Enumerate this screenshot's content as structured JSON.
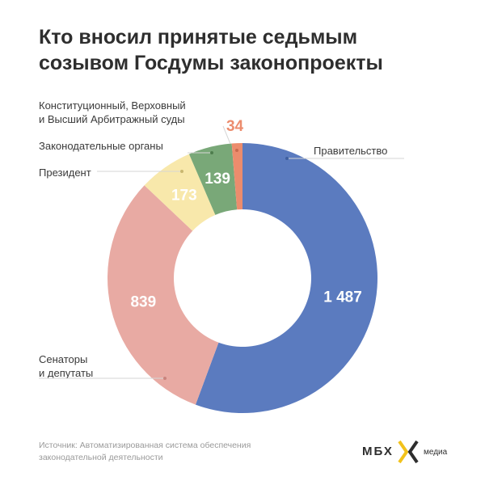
{
  "title": {
    "line1": "Кто вносил принятые седьмым",
    "line2": "созывом Госдумы законопроекты"
  },
  "chart_data": {
    "type": "pie",
    "variant": "donut",
    "title": "Кто вносил принятые седьмым созывом Госдумы законопроекты",
    "categories": [
      "Правительство",
      "Сенаторы и депутаты",
      "Президент",
      "Законодательные органы",
      "Конституционный, Верховный и Высший Арбитражный суды"
    ],
    "values": [
      1487,
      839,
      173,
      139,
      34
    ],
    "value_labels": [
      "1 487",
      "839",
      "173",
      "139",
      "34"
    ],
    "colors": [
      "#5b7bbf",
      "#e8aaa3",
      "#f8e8ab",
      "#79a878",
      "#ec8c6d"
    ],
    "value_label_colors": [
      "#ffffff",
      "#ffffff",
      "#ffffff",
      "#ffffff",
      "#ec8c6d"
    ]
  },
  "labels": {
    "government": "Правительство",
    "senators_line1": "Сенаторы",
    "senators_line2": "и депутаты",
    "president": "Президент",
    "legislative": "Законодательные органы",
    "courts_line1": "Конституционный, Верховный",
    "courts_line2": "и Высший Арбитражный суды"
  },
  "source": {
    "line1": "Источник: Автоматизированная система обеспечения",
    "line2": "законодательной деятельности"
  },
  "logo": {
    "text": "МБХ",
    "sub": "медиа"
  }
}
